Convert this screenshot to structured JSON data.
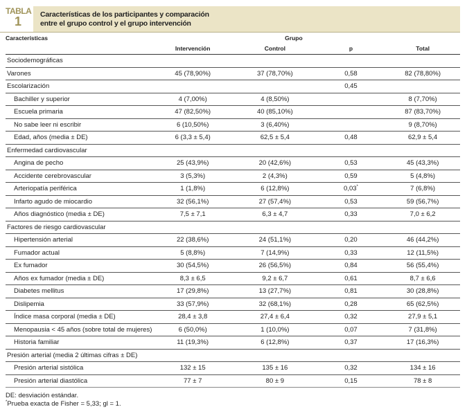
{
  "header": {
    "tabla_label": "TABLA",
    "tabla_number": "1",
    "title_line1": "Características de los participantes y comparación",
    "title_line2": "entre el grupo control y el grupo intervención"
  },
  "columns": {
    "characteristics": "Características",
    "group": "Grupo",
    "intervention": "Intervención",
    "control": "Control",
    "p": "p",
    "total": "Total"
  },
  "rows": [
    {
      "type": "cat",
      "label": "Sociodemográficas"
    },
    {
      "type": "cat",
      "label": "Varones",
      "i": "45 (78,90%)",
      "c": "37 (78,70%)",
      "p": "0,58",
      "t": "82 (78,80%)"
    },
    {
      "type": "cat",
      "label": "Escolarización",
      "p": "0,45"
    },
    {
      "type": "sub",
      "label": "Bachiller y superior",
      "i": "4 (7,00%)",
      "c": "4 (8,50%)",
      "t": "8 (7,70%)"
    },
    {
      "type": "sub",
      "label": "Escuela primaria",
      "i": "47 (82,50%)",
      "c": "40 (85,10%)",
      "t": "87 (83,70%)"
    },
    {
      "type": "sub",
      "label": "No sabe leer ni escribir",
      "i": "6 (10,50%)",
      "c": "3 (6,40%)",
      "t": "9 (8,70%)"
    },
    {
      "type": "sub",
      "label": "Edad, años (media ± DE)",
      "i": "6 (3,3 ± 5,4)",
      "c": "62,5 ± 5,4",
      "p": "0,48",
      "t": "62,9 ± 5,4"
    },
    {
      "type": "cat",
      "label": "Enfermedad cardiovascular"
    },
    {
      "type": "sub",
      "label": "Angina de pecho",
      "i": "25 (43,9%)",
      "c": "20 (42,6%)",
      "p": "0,53",
      "t": "45 (43,3%)"
    },
    {
      "type": "sub",
      "label": "Accidente cerebrovascular",
      "i": "3 (5,3%)",
      "c": "2 (4,3%)",
      "p": "0,59",
      "t": "5 (4,8%)"
    },
    {
      "type": "sub",
      "label": "Arteriopatía periférica",
      "i": "1 (1,8%)",
      "c": "6 (12,8%)",
      "p": "0,03",
      "p_mark": "*",
      "t": "7 (6,8%)"
    },
    {
      "type": "sub",
      "label": "Infarto agudo de miocardio",
      "i": "32 (56,1%)",
      "c": "27 (57,4%)",
      "p": "0,53",
      "t": "59 (56,7%)"
    },
    {
      "type": "sub",
      "label": "Años diagnóstico (media ± DE)",
      "i": "7,5 ± 7,1",
      "c": "6,3 ± 4,7",
      "p": "0,33",
      "t": "7,0 ± 6,2"
    },
    {
      "type": "cat",
      "label": "Factores de riesgo cardiovascular"
    },
    {
      "type": "sub",
      "label": "Hipertensión arterial",
      "i": "22 (38,6%)",
      "c": "24 (51,1%)",
      "p": "0,20",
      "t": "46 (44,2%)"
    },
    {
      "type": "sub",
      "label": "Fumador actual",
      "i": "5 (8,8%)",
      "c": "7 (14,9%)",
      "p": "0,33",
      "t": "12 (11,5%)"
    },
    {
      "type": "sub",
      "label": "Ex fumador",
      "i": "30 (54,5%)",
      "c": "26 (56,5%)",
      "p": "0,84",
      "t": "56 (55,4%)"
    },
    {
      "type": "sub",
      "label": "Años ex fumador (media ± DE)",
      "i": "8,3 ± 6,5",
      "c": "9,2 ± 6,7",
      "p": "0,61",
      "t": "8,7 ± 6,6"
    },
    {
      "type": "sub",
      "label": "Diabetes mellitus",
      "i": "17 (29,8%)",
      "c": "13 (27,7%)",
      "p": "0,81",
      "t": "30 (28,8%)"
    },
    {
      "type": "sub",
      "label": "Dislipemia",
      "i": "33 (57,9%)",
      "c": "32 (68,1%)",
      "p": "0,28",
      "t": "65 (62,5%)"
    },
    {
      "type": "sub",
      "label": "Índice masa corporal (media ± DE)",
      "i": "28,4 ± 3,8",
      "c": "27,4 ± 6,4",
      "p": "0,32",
      "t": "27,9 ± 5,1"
    },
    {
      "type": "sub",
      "label": "Menopausia < 45 años (sobre total de mujeres)",
      "i": "6 (50,0%)",
      "c": "1 (10,0%)",
      "p": "0,07",
      "t": "7 (31,8%)"
    },
    {
      "type": "sub",
      "label": "Historia familiar",
      "i": "11 (19,3%)",
      "c": "6 (12,8%)",
      "p": "0,37",
      "t": "17 (16,3%)"
    },
    {
      "type": "cat",
      "label": "Presión arterial (media 2 últimas cifras ± DE)"
    },
    {
      "type": "sub",
      "label": "Presión arterial sistólica",
      "i": "132 ± 15",
      "c": "135 ± 16",
      "p": "0,32",
      "t": "134 ± 16"
    },
    {
      "type": "sub",
      "label": "Presión arterial diastólica",
      "i": "77 ± 7",
      "c": "80 ± 9",
      "p": "0,15",
      "t": "78 ± 8"
    }
  ],
  "notes": {
    "line1": "DE: desviación estándar.",
    "line2_mark": "*",
    "line2": "Prueba exacta de Fisher = 5,33; gl = 1."
  },
  "colors": {
    "band": "#ebe4c6",
    "tabla": "#a0945a"
  }
}
